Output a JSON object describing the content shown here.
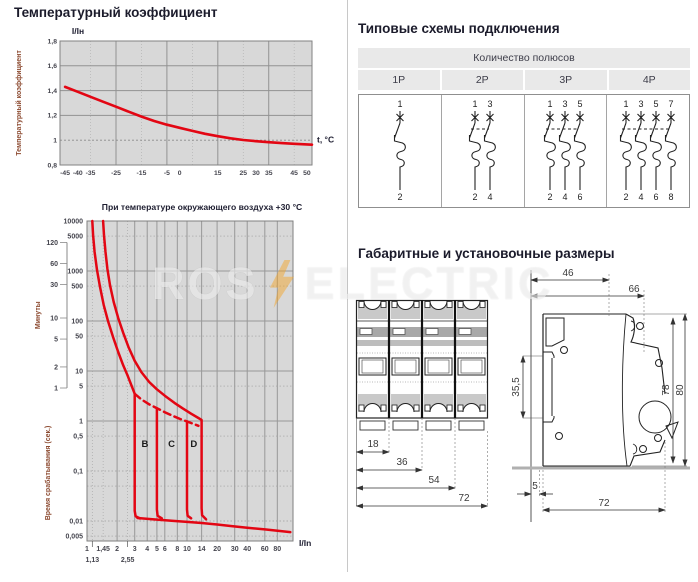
{
  "page": {
    "background": "#ffffff",
    "divider_color": "#c8c8c8"
  },
  "watermark": {
    "left_text": "ROS",
    "right_text": "ELECTRIC",
    "bolt_color": "#f6a21d"
  },
  "left_column": {
    "section1_title": "Температурный коэффициент",
    "section2_title": "При температуре окружающего воздуха +30 °С"
  },
  "right_column": {
    "schemes": {
      "title": "Типовые схемы подключения",
      "table_header": "Количество полюсов",
      "columns": [
        {
          "label": "1P",
          "poles": 1,
          "top_terminals": [
            "1"
          ],
          "bottom_terminals": [
            "2"
          ]
        },
        {
          "label": "2P",
          "poles": 2,
          "top_terminals": [
            "1",
            "3"
          ],
          "bottom_terminals": [
            "2",
            "4"
          ]
        },
        {
          "label": "3P",
          "poles": 3,
          "top_terminals": [
            "1",
            "3",
            "5"
          ],
          "bottom_terminals": [
            "2",
            "4",
            "6"
          ]
        },
        {
          "label": "4P",
          "poles": 4,
          "top_terminals": [
            "1",
            "3",
            "5",
            "7"
          ],
          "bottom_terminals": [
            "2",
            "4",
            "6",
            "8"
          ]
        }
      ]
    },
    "dimensions": {
      "title": "Габаритные и установочные размеры",
      "front_view": {
        "widths_mm": [
          "18",
          "36",
          "54",
          "72"
        ]
      },
      "side_view": {
        "top_depth": "46",
        "full_depth_upper": "66",
        "rail_height": "35,5",
        "height_body": "78",
        "height_full": "80",
        "din_offset": "5",
        "depth": "72"
      }
    }
  },
  "chart_data": [
    {
      "type": "line",
      "title": "Температурный коэффициент",
      "corner_label": "I/Iн",
      "xlabel": "t, °С",
      "ylabel": "Температурный коэффициент",
      "xlim": [
        -47,
        52
      ],
      "ylim": [
        0.8,
        1.8
      ],
      "x_ticks": [
        -45,
        -40,
        -35,
        -25,
        -15,
        -5,
        0,
        15,
        25,
        30,
        35,
        45,
        50
      ],
      "y_ticks": [
        0.8,
        1,
        1.2,
        1.4,
        1.6,
        1.8
      ],
      "grid_x_major": [
        -25,
        -5,
        15,
        35
      ],
      "grid_x_minor": [
        -35,
        -15,
        5,
        25,
        45
      ],
      "grid_y_major": [
        1.2,
        1.4,
        1.6
      ],
      "grid_y_dotted": [
        1
      ],
      "line_color": "#e30613",
      "grid": true,
      "legend": false,
      "series": [
        {
          "name": "temperature-coefficient",
          "x": [
            -45,
            -40,
            -35,
            -30,
            -25,
            -20,
            -15,
            -10,
            -5,
            0,
            5,
            10,
            15,
            20,
            25,
            30,
            35,
            40,
            45,
            50,
            52
          ],
          "y": [
            1.43,
            1.39,
            1.35,
            1.31,
            1.27,
            1.23,
            1.19,
            1.155,
            1.125,
            1.1,
            1.075,
            1.052,
            1.032,
            1.015,
            1.002,
            0.992,
            0.984,
            0.977,
            0.971,
            0.966,
            0.964
          ]
        }
      ]
    },
    {
      "type": "line",
      "scale": "log-log",
      "title": "При температуре окружающего воздуха +30 °С",
      "xlabel": "I/In",
      "ylabel": "Время срабатывания (сек.)",
      "ylabel_minutes": "Минуты",
      "xlim": [
        1,
        115
      ],
      "ylim": [
        0.004,
        10000
      ],
      "x_ticks": [
        1,
        1.45,
        2,
        3,
        4,
        5,
        6,
        8,
        10,
        14,
        20,
        30,
        40,
        60,
        80
      ],
      "x_subticks": [
        1.13,
        2.55
      ],
      "y_ticks": [
        10000,
        5000,
        1000,
        500,
        100,
        50,
        10,
        5,
        1,
        0.5,
        0.1,
        0.01,
        0.005
      ],
      "minutes_ticks": [
        120,
        60,
        30,
        10,
        5,
        2,
        1
      ],
      "grid_x_solid": [
        2,
        3,
        4,
        5,
        6,
        8,
        10,
        14,
        20,
        30,
        40,
        60,
        80
      ],
      "grid_x_dotted": [
        1.13,
        1.45,
        2.55
      ],
      "grid_y_solid": [
        1000,
        100,
        10,
        1
      ],
      "grid_y_dotted": [
        5000,
        500,
        50,
        5,
        0.5,
        0.1,
        0.05,
        0.01,
        0.005
      ],
      "line_color": "#e30613",
      "zone_labels": [
        {
          "text": "B",
          "x": 3.8,
          "y": 0.3
        },
        {
          "text": "C",
          "x": 7,
          "y": 0.3
        },
        {
          "text": "D",
          "x": 11.7,
          "y": 0.3
        }
      ],
      "curves": [
        {
          "name": "b-thermal-lower-with-magnetic-drop-3In",
          "style": "solid",
          "points": [
            [
              1.13,
              10000
            ],
            [
              1.15,
              5200
            ],
            [
              1.19,
              2400
            ],
            [
              1.26,
              1050
            ],
            [
              1.35,
              480
            ],
            [
              1.47,
              210
            ],
            [
              1.62,
              100
            ],
            [
              1.82,
              48
            ],
            [
              2.05,
              24
            ],
            [
              2.3,
              13
            ],
            [
              2.55,
              8
            ],
            [
              2.8,
              5
            ],
            [
              3,
              3.5
            ],
            [
              3,
              0.016
            ],
            [
              3.06,
              0.0125
            ],
            [
              3.4,
              0.0112
            ]
          ]
        },
        {
          "name": "thermal-upper-with-magnetic-drop-14In",
          "style": "solid",
          "points": [
            [
              1.45,
              10000
            ],
            [
              1.48,
              5200
            ],
            [
              1.53,
              2400
            ],
            [
              1.6,
              1100
            ],
            [
              1.7,
              520
            ],
            [
              1.85,
              240
            ],
            [
              2.05,
              115
            ],
            [
              2.3,
              58
            ],
            [
              2.6,
              30
            ],
            [
              3,
              16
            ],
            [
              3.5,
              9.5
            ],
            [
              4.2,
              6
            ],
            [
              5,
              4.3
            ],
            [
              6,
              3.2
            ],
            [
              7.5,
              2.3
            ],
            [
              9,
              1.8
            ],
            [
              11,
              1.4
            ],
            [
              13,
              1.15
            ],
            [
              14,
              1.05
            ],
            [
              14,
              0.018
            ],
            [
              14.15,
              0.013
            ],
            [
              15.5,
              0.0108
            ]
          ]
        },
        {
          "name": "lower-boundary-dashed",
          "style": "dashed",
          "points": [
            [
              3,
              3.5
            ],
            [
              3.5,
              2.7
            ],
            [
              4.2,
              2.15
            ],
            [
              5,
              1.8
            ],
            [
              6,
              1.5
            ],
            [
              7.2,
              1.27
            ],
            [
              8.5,
              1.1
            ],
            [
              10,
              0.98
            ],
            [
              11.5,
              0.88
            ],
            [
              13,
              0.8
            ]
          ]
        },
        {
          "name": "c-magnetic-drop-5In",
          "style": "solid",
          "points": [
            [
              5,
              1.8
            ],
            [
              5,
              0.017
            ],
            [
              5.08,
              0.0127
            ],
            [
              5.6,
              0.0113
            ]
          ]
        },
        {
          "name": "d-magnetic-drop-10In",
          "style": "solid",
          "points": [
            [
              10,
              0.98
            ],
            [
              10,
              0.017
            ],
            [
              10.15,
              0.0127
            ],
            [
              11,
              0.0113
            ]
          ]
        },
        {
          "name": "instantaneous-trip-tail",
          "style": "solid",
          "points": [
            [
              3.2,
              0.0115
            ],
            [
              4.5,
              0.0108
            ],
            [
              7,
              0.0101
            ],
            [
              10,
              0.0096
            ],
            [
              14,
              0.0091
            ],
            [
              20,
              0.0085
            ],
            [
              28,
              0.0079
            ],
            [
              40,
              0.0073
            ],
            [
              60,
              0.0068
            ],
            [
              85,
              0.0063
            ],
            [
              108,
              0.006
            ]
          ]
        }
      ]
    }
  ]
}
